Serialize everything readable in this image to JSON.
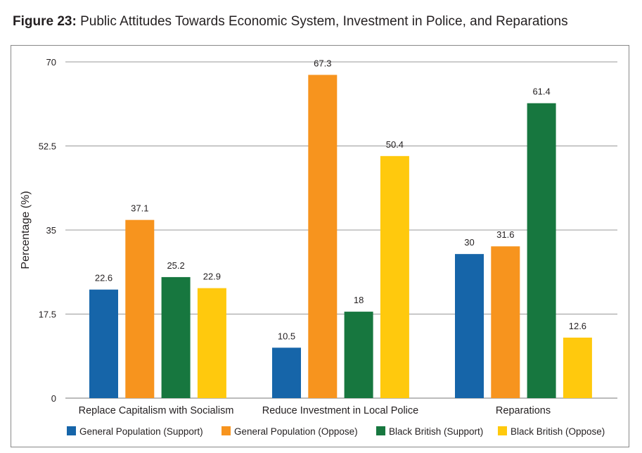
{
  "figure": {
    "label": "Figure 23:",
    "text": "Public Attitudes Towards Economic System, Investment in Police, and Reparations"
  },
  "chart_data": {
    "type": "bar",
    "title": "Public Attitudes Towards Economic System, Investment in Police, and Reparations",
    "xlabel": "",
    "ylabel": "Percentage (%)",
    "ylim": [
      0,
      70
    ],
    "yticks": [
      0,
      17.5,
      35,
      52.5,
      70
    ],
    "ytick_labels": [
      "0",
      "17.5",
      "35",
      "52.5",
      "70"
    ],
    "grid": true,
    "legend_position": "bottom",
    "categories": [
      "Replace Capitalism with Socialism",
      "Reduce Investment in Local Police",
      "Reparations"
    ],
    "series": [
      {
        "name": "General Population (Support)",
        "color": "#1665a9",
        "values": [
          22.6,
          10.5,
          30
        ],
        "labels": [
          "22.6",
          "10.5",
          "30"
        ]
      },
      {
        "name": "General Population (Oppose)",
        "color": "#f7941e",
        "values": [
          37.1,
          67.3,
          31.6
        ],
        "labels": [
          "37.1",
          "67.3",
          "31.6"
        ]
      },
      {
        "name": "Black British (Support)",
        "color": "#17773f",
        "values": [
          25.2,
          18,
          61.4
        ],
        "labels": [
          "25.2",
          "18",
          "61.4"
        ]
      },
      {
        "name": "Black British (Oppose)",
        "color": "#ffc90d",
        "values": [
          22.9,
          50.4,
          12.6
        ],
        "labels": [
          "22.9",
          "50.4",
          "12.6"
        ]
      }
    ]
  }
}
